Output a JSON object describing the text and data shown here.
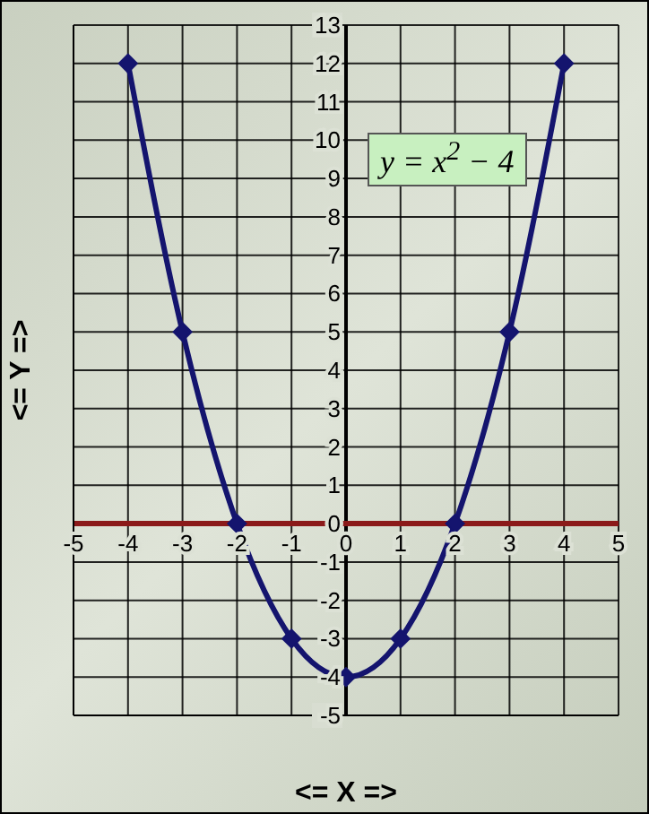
{
  "chart_data": {
    "type": "line",
    "xlabel": "<= X =>",
    "ylabel": "<= Y =>",
    "annotations": [
      "y = x$^{2}$ − 4"
    ],
    "x": [
      -4,
      -3,
      -2,
      -1,
      0,
      1,
      2,
      3,
      4
    ],
    "series": [
      {
        "color": "#14146e",
        "values": [
          12,
          5,
          0,
          -3,
          -4,
          -3,
          0,
          5,
          12
        ]
      }
    ],
    "xlim": [
      -5,
      5
    ],
    "xticks": [
      -5,
      -4,
      -3,
      -2,
      -1,
      0,
      1,
      2,
      3,
      4,
      5
    ],
    "ylim": [
      -5,
      13
    ],
    "yticks": [
      -5,
      -4,
      -3,
      -2,
      -1,
      0,
      1,
      2,
      3,
      4,
      5,
      6,
      7,
      8,
      9,
      10,
      11,
      12,
      13
    ],
    "grid": true,
    "legend": false,
    "marker": "diamond",
    "line_style": "solid"
  }
}
